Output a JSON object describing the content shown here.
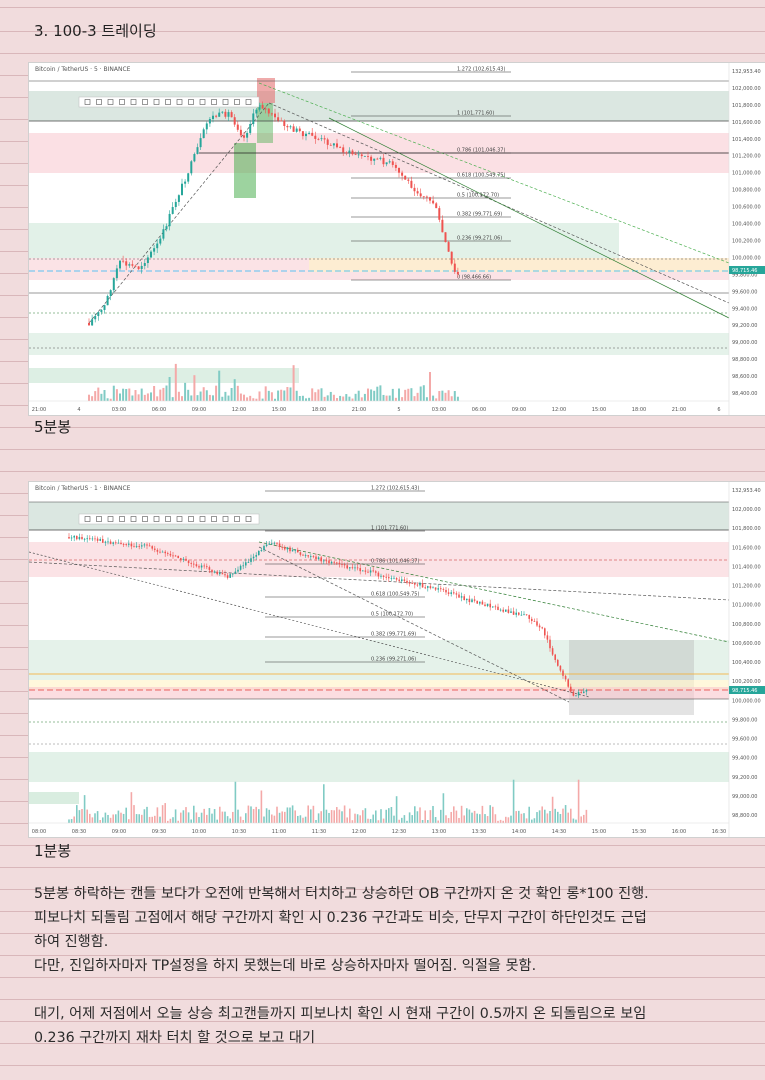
{
  "heading": "3. 100-3 트레이딩",
  "chart1": {
    "symbol_line": "Bitcoin / TetherUS · 5 · BINANCE",
    "price_labels": [
      "132,953.40",
      "102,000.00",
      "101,800.00",
      "101,600.00",
      "101,400.00",
      "101,200.00",
      "101,000.00",
      "100,800.00",
      "100,600.00",
      "100,400.00",
      "100,200.00",
      "100,000.00",
      "99,800.00",
      "99,600.00",
      "99,400.00",
      "99,200.00",
      "99,000.00",
      "98,800.00",
      "98,600.00",
      "98,400.00"
    ],
    "fib_labels": [
      "1.272 (102,615.43)",
      "1 (101,771.60)",
      "0.786 (101,046.37)",
      "0.618 (100,549.75)",
      "0.5 (100,172.70)",
      "0.382 (99,771.69)",
      "0.236 (99,271.06)",
      "0 (98,466.66)"
    ],
    "time_labels": [
      "21:00",
      "4",
      "03:00",
      "06:00",
      "09:00",
      "12:00",
      "15:00",
      "18:00",
      "21:00",
      "5",
      "03:00",
      "06:00",
      "09:00",
      "12:00",
      "15:00",
      "18:00",
      "21:00",
      "6"
    ],
    "current_price": "98,715.46"
  },
  "chart1_caption": "5분봉",
  "chart2": {
    "symbol_line": "Bitcoin / TetherUS · 1 · BINANCE",
    "price_labels": [
      "132,953.40",
      "102,000.00",
      "101,800.00",
      "101,600.00",
      "101,400.00",
      "101,200.00",
      "101,000.00",
      "100,800.00",
      "100,600.00",
      "100,400.00",
      "100,200.00",
      "100,000.00",
      "99,800.00",
      "99,600.00",
      "99,400.00",
      "99,200.00",
      "99,000.00",
      "98,800.00"
    ],
    "fib_labels": [
      "1.272 (102,615.43)",
      "1 (101,771.60)",
      "0.786 (101,046.37)",
      "0.618 (100,549.75)",
      "0.5 (100,172.70)",
      "0.382 (99,771.69)",
      "0.236 (99,271.06)"
    ],
    "time_labels": [
      "08:00",
      "08:30",
      "09:00",
      "09:30",
      "10:00",
      "10:30",
      "11:00",
      "11:30",
      "12:00",
      "12:30",
      "13:00",
      "13:30",
      "14:00",
      "14:30",
      "15:00",
      "15:30",
      "16:00",
      "16:30"
    ],
    "current_price": "98,715.46"
  },
  "chart2_caption": "1분봉",
  "body": [
    "5분봉 하락하는 캔들 보다가 오전에 반복해서 터치하고 상승하던 OB 구간까지 온 것 확인 롱*100 진행.",
    "피보나치 되돌림 고점에서 해당 구간까지 확인 시 0.236 구간과도 비슷, 단무지 구간이 하단인것도 근덥",
    "하여 진행함.",
    "다만, 진입하자마자  TP설정을 하지 못했는데 바로 상승하자마자 떨어짐. 익절을 못함.",
    "",
    "대기, 어제 저점에서 오늘 상승 최고캔들까지 피보나치 확인 시 현재 구간이 0.5까지 온 되돌림으로 보임",
    "0.236 구간까지 재차 터치 할 것으로 보고 대기"
  ]
}
